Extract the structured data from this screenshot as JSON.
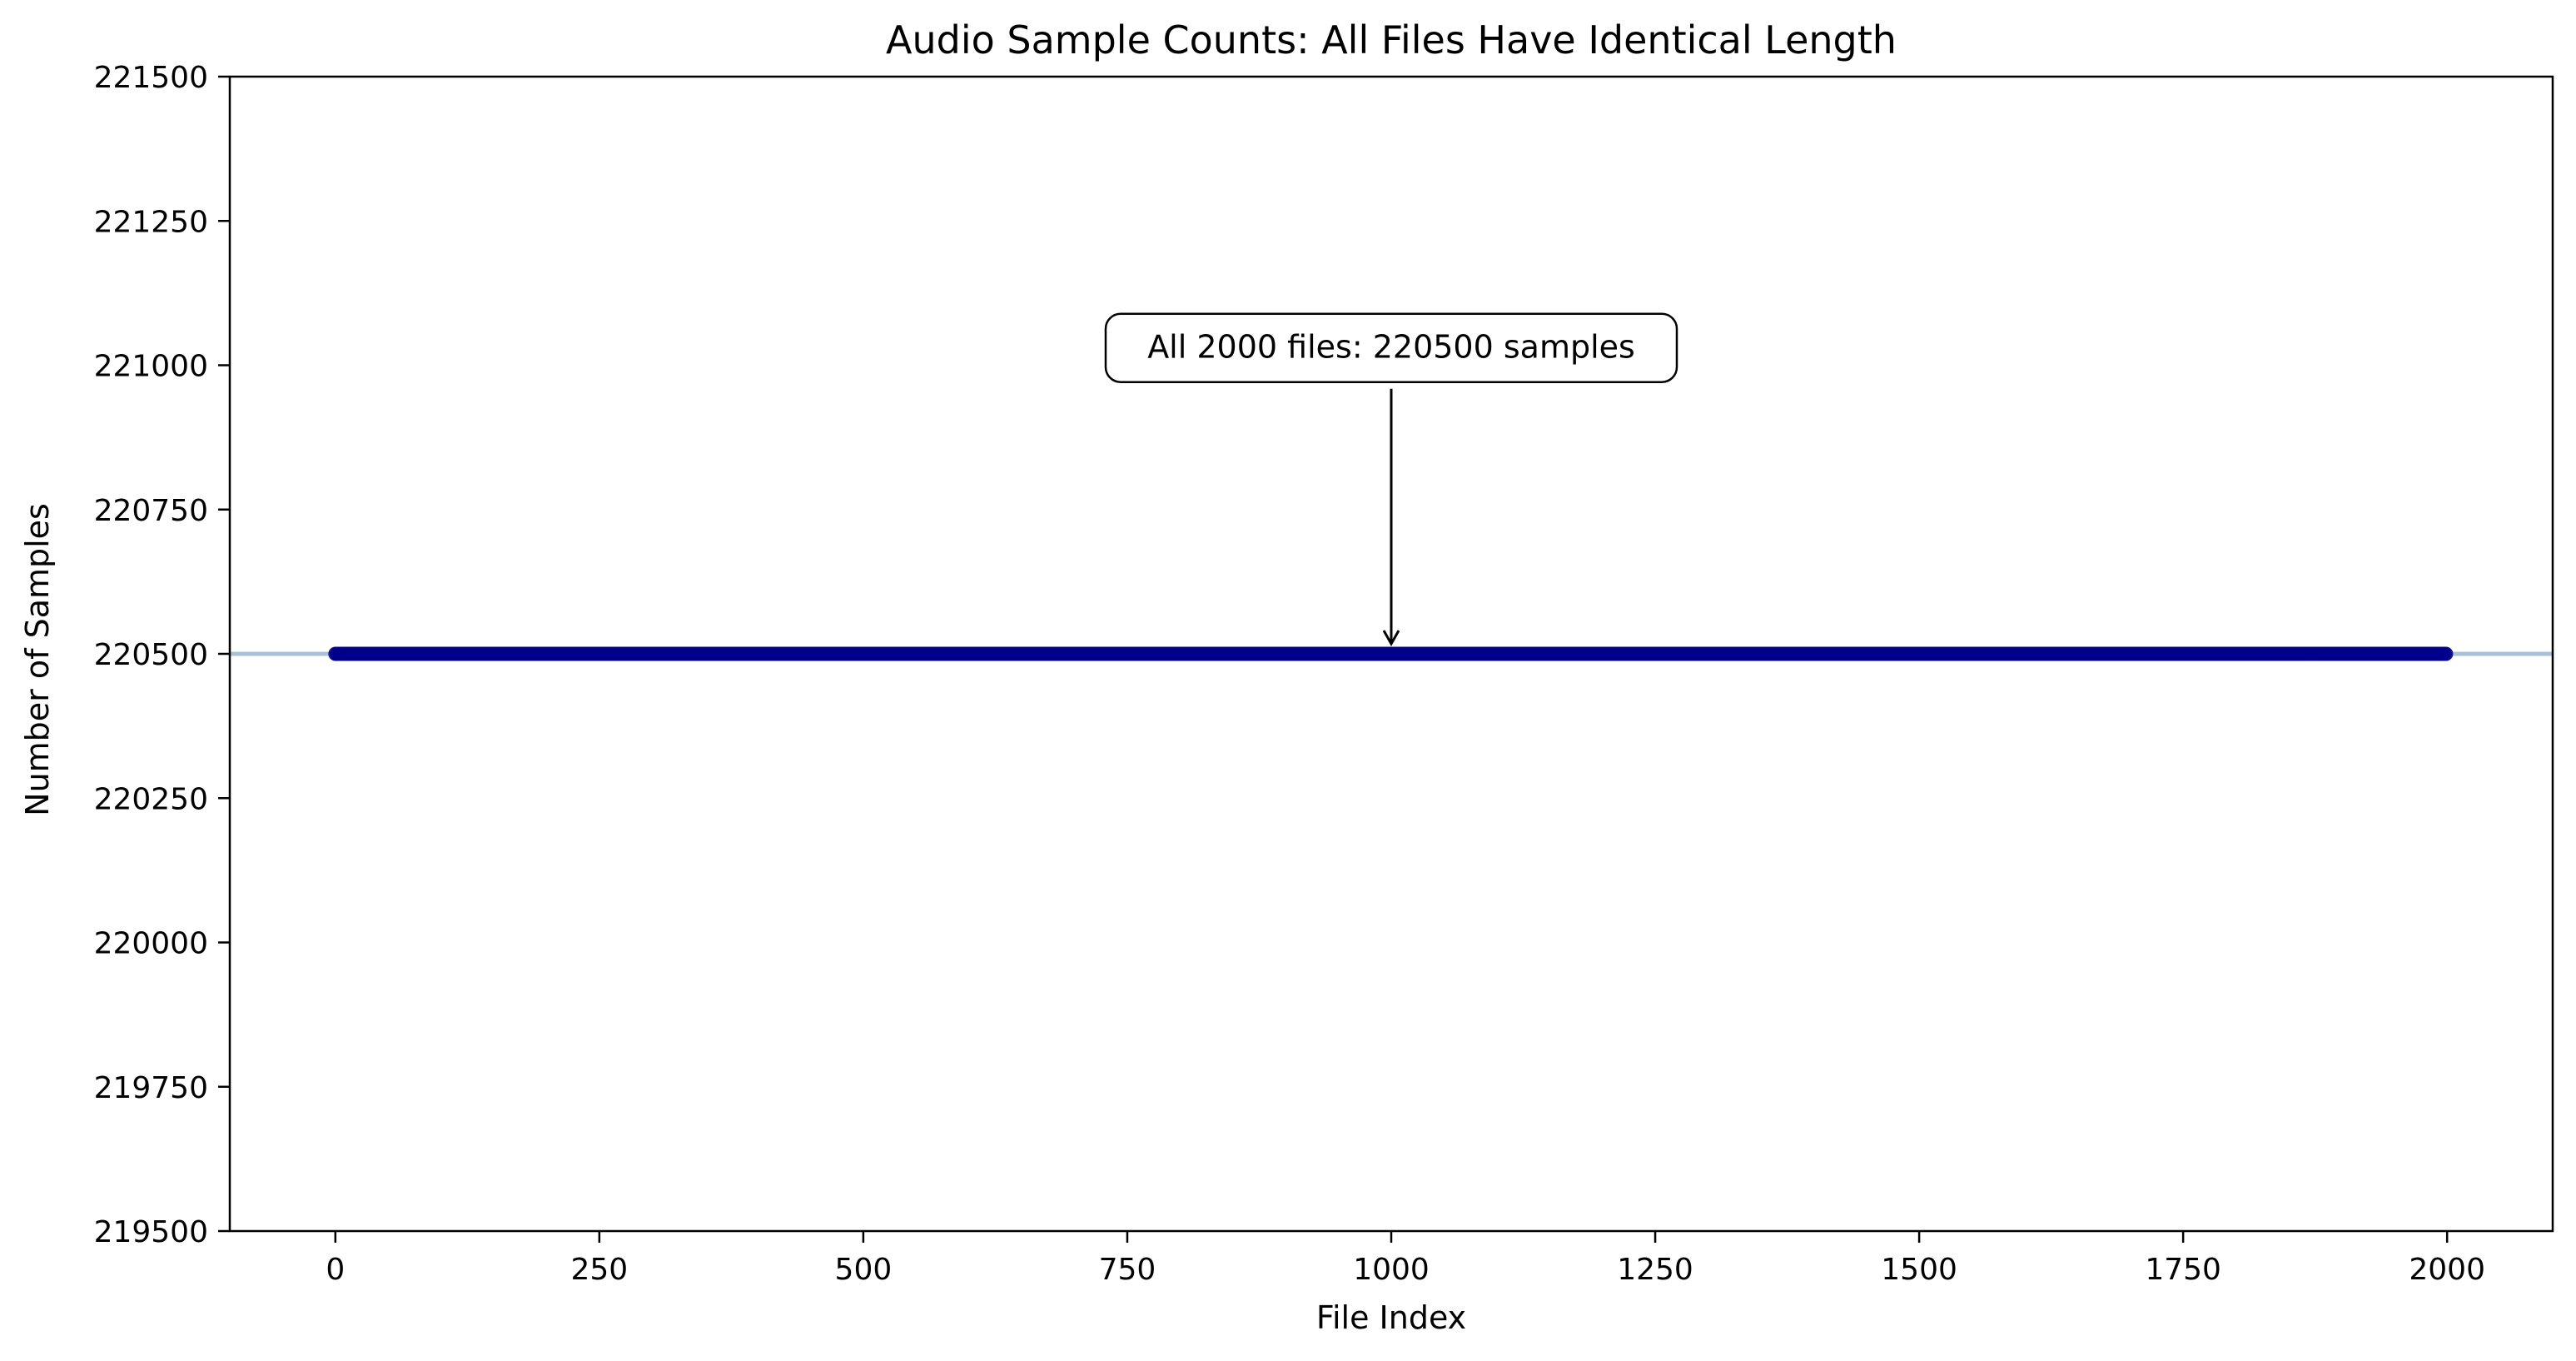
{
  "chart_data": {
    "type": "scatter",
    "title": "Audio Sample Counts: All Files Have Identical Length",
    "xlabel": "File Index",
    "ylabel": "Number of Samples",
    "xlim": [
      -100,
      2100
    ],
    "ylim": [
      219500,
      221500
    ],
    "xticks": [
      0,
      250,
      500,
      750,
      1000,
      1250,
      1500,
      1750,
      2000
    ],
    "yticks": [
      219500,
      219750,
      220000,
      220250,
      220500,
      220750,
      221000,
      221250,
      221500
    ],
    "grid": false,
    "series": [
      {
        "x_start": 0,
        "x_end": 1999,
        "count": 2000,
        "y": 220500,
        "color": "#00008b"
      }
    ],
    "reference_line": {
      "y": 220500,
      "color": "#a7c1d9"
    },
    "annotation": {
      "text": "All 2000 files: 220500 samples",
      "target": {
        "x": 1000,
        "y": 220500
      },
      "text_position": {
        "x": 1000,
        "y": 221030
      }
    }
  }
}
